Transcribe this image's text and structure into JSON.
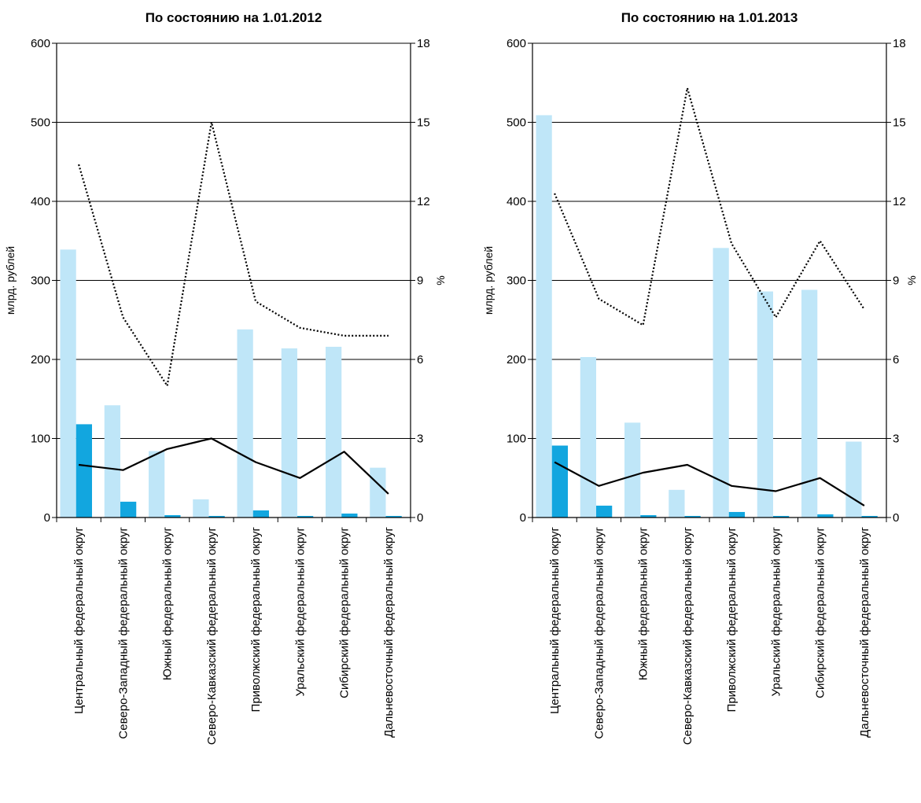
{
  "colors": {
    "bar_light": "#bfe6f8",
    "bar_dark": "#12a6df",
    "grid": "#000000",
    "line_solid": "#000000",
    "line_dotted": "#000000"
  },
  "chart_data": [
    {
      "type": "bar",
      "title": "По состоянию на 1.01.2012",
      "ylabel": "млрд. рублей",
      "y2label": "%",
      "ylim": [
        0,
        600
      ],
      "y2lim": [
        0,
        18
      ],
      "yticks": [
        0,
        100,
        200,
        300,
        400,
        500,
        600
      ],
      "y2ticks": [
        0,
        3,
        6,
        9,
        12,
        15,
        18
      ],
      "grid": true,
      "categories": [
        "Центральный федеральный округ",
        "Северо-Западный федеральный округ",
        "Южный федеральный округ",
        "Северо-Кавказский федеральный округ",
        "Приволжский федеральный округ",
        "Уральский федеральный округ",
        "Сибирский федеральный округ",
        "Дальневосточный федеральный округ"
      ],
      "series": [
        {
          "kind": "bar",
          "axis": "left",
          "style": "light",
          "values": [
            339,
            142,
            84,
            23,
            238,
            214,
            216,
            63
          ]
        },
        {
          "kind": "bar",
          "axis": "left",
          "style": "dark",
          "values": [
            118,
            20,
            3,
            2,
            9,
            2,
            5,
            2
          ]
        },
        {
          "kind": "line",
          "axis": "right",
          "style": "dotted",
          "values": [
            13.4,
            7.6,
            5.0,
            15.0,
            8.2,
            7.2,
            6.9,
            6.9
          ]
        },
        {
          "kind": "line",
          "axis": "right",
          "style": "solid",
          "values": [
            2.0,
            1.8,
            2.6,
            3.0,
            2.1,
            1.5,
            2.5,
            0.9
          ]
        }
      ]
    },
    {
      "type": "bar",
      "title": "По состоянию на 1.01.2013",
      "ylabel": "млрд. рублей",
      "y2label": "%",
      "ylim": [
        0,
        600
      ],
      "y2lim": [
        0,
        18
      ],
      "yticks": [
        0,
        100,
        200,
        300,
        400,
        500,
        600
      ],
      "y2ticks": [
        0,
        3,
        6,
        9,
        12,
        15,
        18
      ],
      "grid": true,
      "categories": [
        "Центральный федеральный округ",
        "Северо-Западный федеральный округ",
        "Южный федеральный округ",
        "Северо-Кавказский федеральный округ",
        "Приволжский федеральный округ",
        "Уральский федеральный округ",
        "Сибирский федеральный округ",
        "Дальневосточный федеральный округ"
      ],
      "series": [
        {
          "kind": "bar",
          "axis": "left",
          "style": "light",
          "values": [
            509,
            203,
            120,
            35,
            341,
            286,
            288,
            96
          ]
        },
        {
          "kind": "bar",
          "axis": "left",
          "style": "dark",
          "values": [
            91,
            15,
            3,
            2,
            7,
            2,
            4,
            2
          ]
        },
        {
          "kind": "line",
          "axis": "right",
          "style": "dotted",
          "values": [
            12.3,
            8.3,
            7.3,
            16.3,
            10.4,
            7.6,
            10.5,
            7.9
          ]
        },
        {
          "kind": "line",
          "axis": "right",
          "style": "solid",
          "values": [
            2.1,
            1.2,
            1.7,
            2.0,
            1.2,
            1.0,
            1.5,
            0.45
          ]
        }
      ]
    }
  ]
}
